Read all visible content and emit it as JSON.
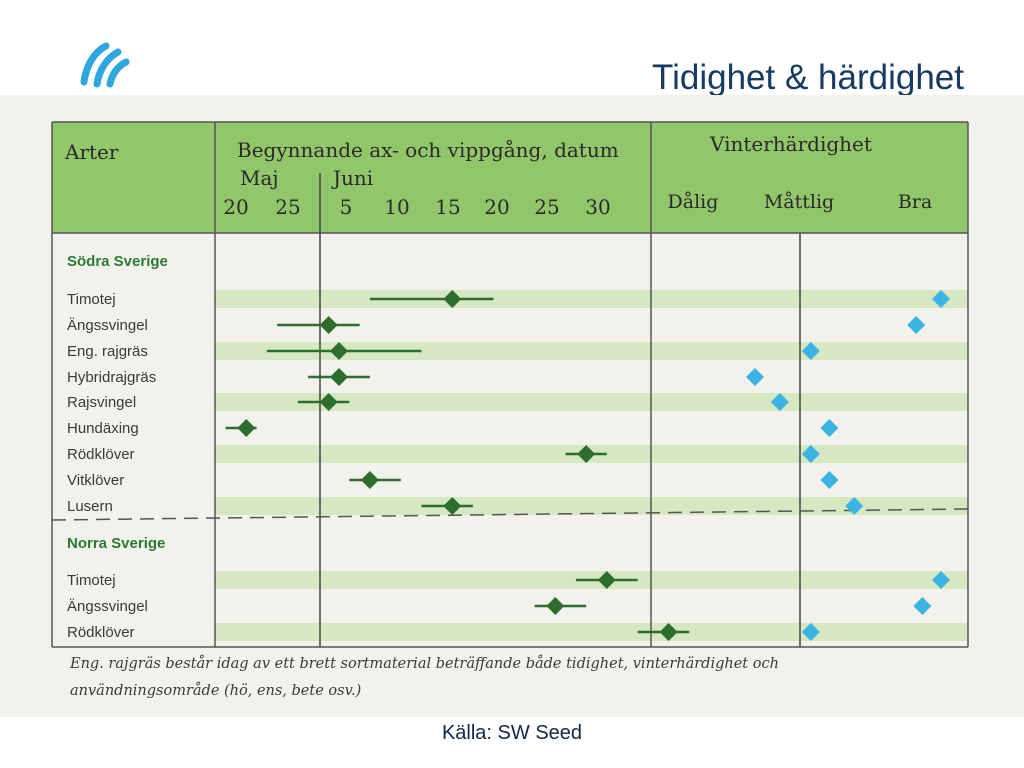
{
  "title": "Tidighet & härdighet",
  "source": "Källa: SW Seed",
  "colors": {
    "header_bg": "#92c66a",
    "stripe": "#d6e8c2",
    "flowering": "#2d6d2d",
    "hardiness": "#3bb4e5",
    "title": "#173a63"
  },
  "chart_data": {
    "type": "table",
    "headers": {
      "species": "Arter",
      "flowering": "Begynnande ax- och vippgång, datum",
      "hardiness": "Vinterhärdighet"
    },
    "months": [
      "Maj",
      "Juni"
    ],
    "date_ticks": [
      "20",
      "25",
      "5",
      "10",
      "15",
      "20",
      "25",
      "30"
    ],
    "hardiness_levels": [
      "Dålig",
      "Måttlig",
      "Bra"
    ],
    "groups": [
      {
        "name": "Södra Sverige",
        "rows": [
          {
            "species": "Timotej",
            "flowering": {
              "start": "Jun 2",
              "mid": "Jun 10",
              "end": "Jun 14"
            },
            "hardiness": 5.0
          },
          {
            "species": "Ängssvingel",
            "flowering": {
              "start": "May 24",
              "mid": "May 29",
              "end": "Jun 1"
            },
            "hardiness": 4.6
          },
          {
            "species": "Eng. rajgräs",
            "flowering": {
              "start": "May 23",
              "mid": "May 30",
              "end": "Jun 7"
            },
            "hardiness": 2.9
          },
          {
            "species": "Hybridrajgräs",
            "flowering": {
              "start": "May 27",
              "mid": "May 30",
              "end": "Jun 2"
            },
            "hardiness": 2.0
          },
          {
            "species": "Rajsvingel",
            "flowering": {
              "start": "May 26",
              "mid": "May 29",
              "end": "May 31"
            },
            "hardiness": 2.4
          },
          {
            "species": "Hundäxing",
            "flowering": {
              "start": "May 19",
              "mid": "May 21",
              "end": "May 22"
            },
            "hardiness": 3.2
          },
          {
            "species": "Rödklöver",
            "flowering": {
              "start": "Jun 21",
              "mid": "Jun 23",
              "end": "Jun 25"
            },
            "hardiness": 2.9
          },
          {
            "species": "Vitklöver",
            "flowering": {
              "start": "May 31",
              "mid": "Jun 2",
              "end": "Jun 5"
            },
            "hardiness": 3.2
          },
          {
            "species": "Lusern",
            "flowering": {
              "start": "Jun 7",
              "mid": "Jun 10",
              "end": "Jun 12"
            },
            "hardiness": 3.6
          }
        ]
      },
      {
        "name": "Norra Sverige",
        "rows": [
          {
            "species": "Timotej",
            "flowering": {
              "start": "Jun 22",
              "mid": "Jun 25",
              "end": "Jun 28"
            },
            "hardiness": 5.0
          },
          {
            "species": "Ängssvingel",
            "flowering": {
              "start": "Jun 18",
              "mid": "Jun 20",
              "end": "Jun 23"
            },
            "hardiness": 4.7
          },
          {
            "species": "Rödklöver",
            "flowering": {
              "start": "Jun 28",
              "mid": "Jul 1",
              "end": "Jul 3"
            },
            "hardiness": 2.9
          }
        ]
      }
    ],
    "footnote": [
      "Eng. rajgräs består idag av ett brett sortmaterial beträffande både tidighet, vinterhärdighet och",
      "användningsområde (hö, ens, bete osv.)"
    ]
  }
}
